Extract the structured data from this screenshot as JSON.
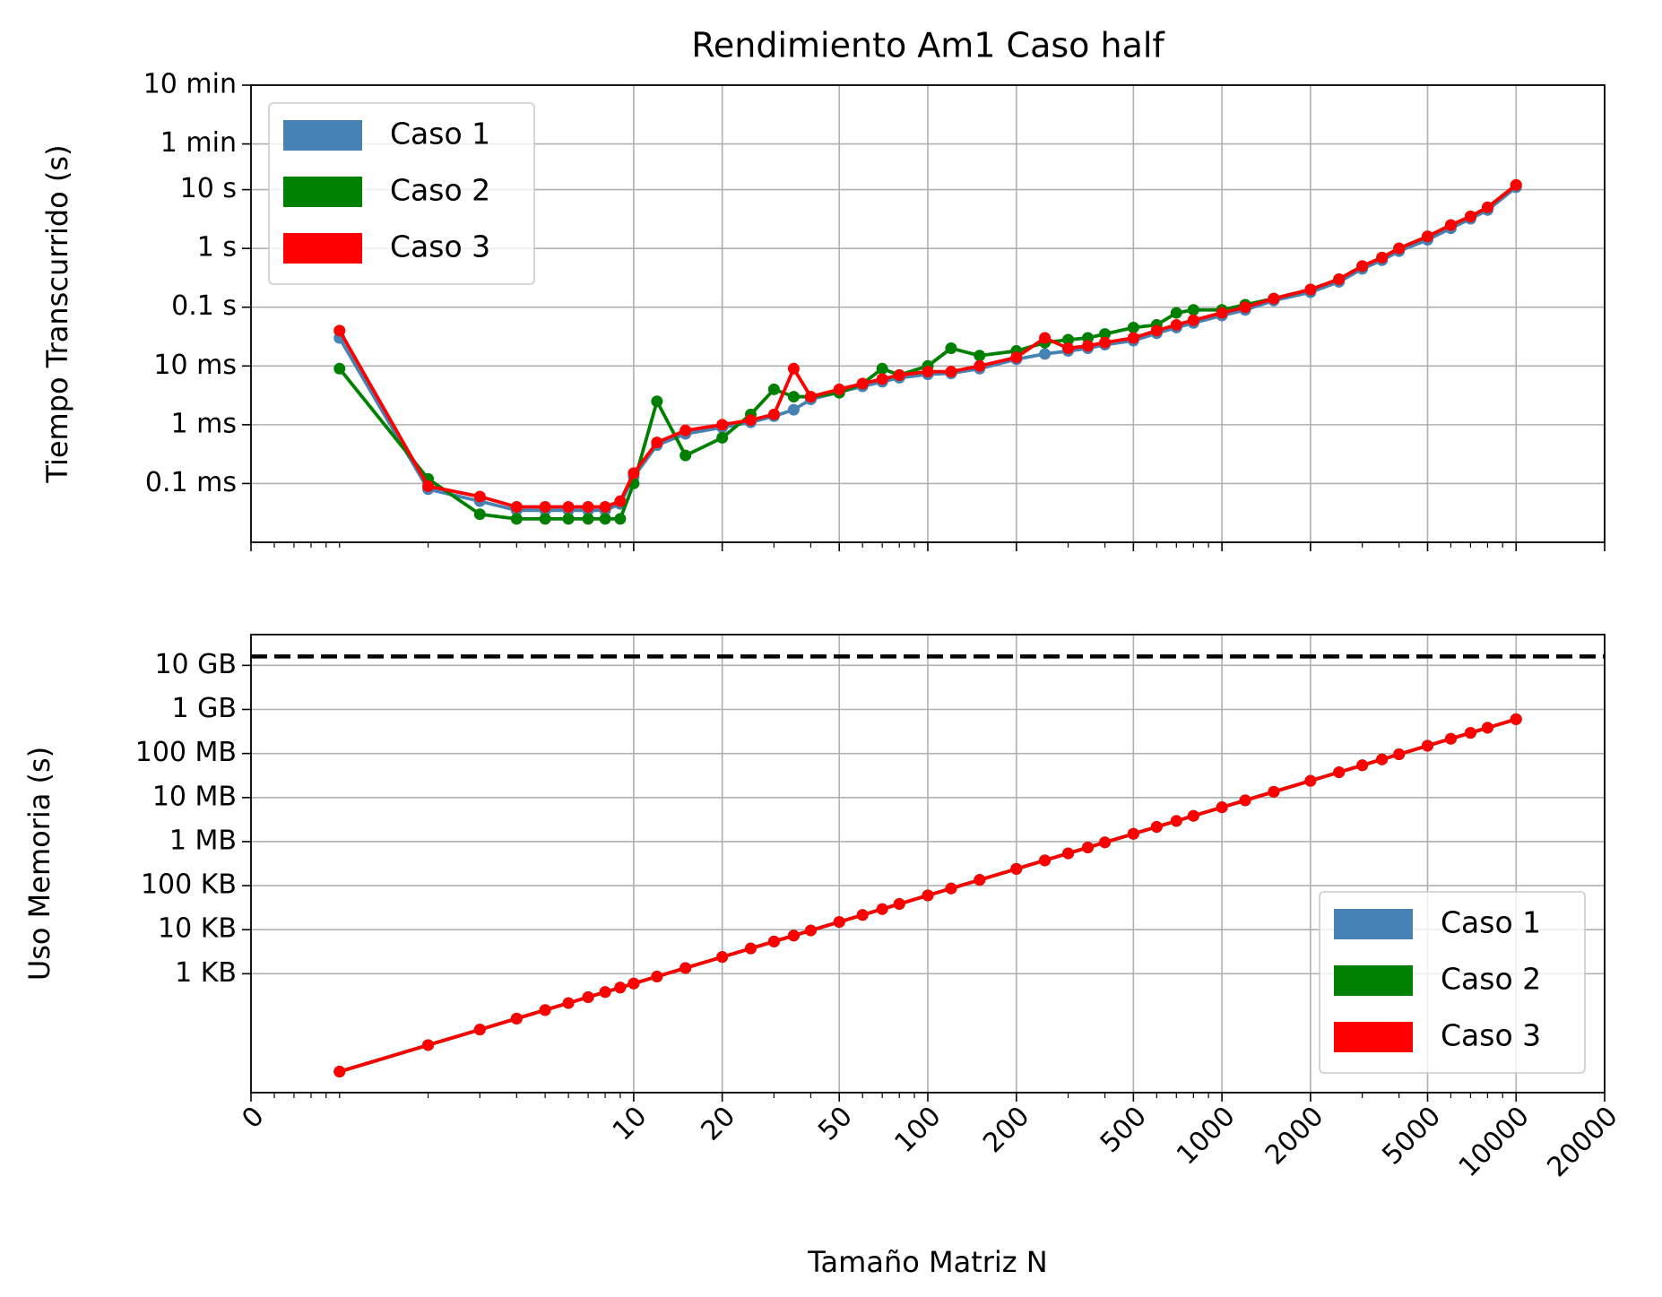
{
  "chart_data": [
    {
      "type": "line",
      "title": "Rendimiento Am1 Caso half",
      "ylabel": "Tiempo Transcurrido (s)",
      "xscale": "log",
      "yscale": "log",
      "sharex": true,
      "grid": true,
      "legend": "upper left",
      "ylim": [
        1e-05,
        600
      ],
      "yticks": [
        {
          "value": 0.0001,
          "label": "0.1 ms"
        },
        {
          "value": 0.001,
          "label": "1 ms"
        },
        {
          "value": 0.01,
          "label": "10 ms"
        },
        {
          "value": 0.1,
          "label": "0.1 s"
        },
        {
          "value": 1,
          "label": "1 s"
        },
        {
          "value": 10,
          "label": "10 s"
        },
        {
          "value": 60,
          "label": "1 min"
        },
        {
          "value": 600,
          "label": "10 min"
        }
      ],
      "x": [
        1,
        2,
        3,
        4,
        5,
        6,
        7,
        8,
        9,
        10,
        12,
        15,
        20,
        25,
        30,
        35,
        40,
        50,
        60,
        70,
        80,
        100,
        120,
        150,
        200,
        250,
        300,
        350,
        400,
        500,
        600,
        700,
        800,
        1000,
        1200,
        1500,
        2000,
        2500,
        3000,
        3500,
        4000,
        5000,
        6000,
        7000,
        8000,
        10000
      ],
      "series": [
        {
          "name": "Caso 1",
          "color": "#4682b4",
          "values": [
            0.03,
            8e-05,
            5e-05,
            3.5e-05,
            3.5e-05,
            3.5e-05,
            3.5e-05,
            3.5e-05,
            4.5e-05,
            0.00013,
            0.00045,
            0.0007,
            0.0009,
            0.0011,
            0.0014,
            0.0018,
            0.0027,
            0.0036,
            0.0045,
            0.0054,
            0.0063,
            0.0072,
            0.0075,
            0.009,
            0.013,
            0.016,
            0.018,
            0.02,
            0.023,
            0.027,
            0.036,
            0.045,
            0.054,
            0.072,
            0.09,
            0.13,
            0.18,
            0.27,
            0.45,
            0.63,
            0.9,
            1.4,
            2.2,
            3.2,
            4.5,
            11
          ]
        },
        {
          "name": "Caso 2",
          "color": "#008000",
          "values": [
            0.009,
            0.00012,
            3e-05,
            2.5e-05,
            2.5e-05,
            2.5e-05,
            2.5e-05,
            2.5e-05,
            2.5e-05,
            0.0001,
            0.0025,
            0.0003,
            0.0006,
            0.0015,
            0.004,
            0.003,
            0.003,
            0.0035,
            0.005,
            0.009,
            0.007,
            0.01,
            0.02,
            0.015,
            0.018,
            0.025,
            0.028,
            0.03,
            0.035,
            0.045,
            0.05,
            0.08,
            0.09,
            0.09,
            0.11,
            0.14,
            0.2,
            0.3,
            0.5,
            0.7,
            1,
            1.6,
            2.5,
            3.5,
            5,
            12
          ]
        },
        {
          "name": "Caso 3",
          "color": "#ff0000",
          "values": [
            0.04,
            9e-05,
            6e-05,
            4e-05,
            4e-05,
            4e-05,
            4e-05,
            4e-05,
            5e-05,
            0.00015,
            0.0005,
            0.0008,
            0.001,
            0.0012,
            0.0015,
            0.009,
            0.003,
            0.004,
            0.005,
            0.006,
            0.007,
            0.008,
            0.008,
            0.01,
            0.014,
            0.03,
            0.02,
            0.022,
            0.025,
            0.03,
            0.04,
            0.05,
            0.06,
            0.08,
            0.1,
            0.14,
            0.2,
            0.3,
            0.5,
            0.7,
            1,
            1.6,
            2.5,
            3.5,
            5,
            12
          ]
        }
      ]
    },
    {
      "type": "line",
      "ylabel": "Uso Memoria (s)",
      "xlabel": "Tamaño Matriz N",
      "xscale": "log",
      "yscale": "log",
      "grid": true,
      "legend": "lower right",
      "xlim": [
        0.5,
        20000
      ],
      "xticks": [
        {
          "value": 0.5,
          "label": "0"
        },
        10,
        20,
        50,
        100,
        200,
        500,
        1000,
        2000,
        5000,
        10000,
        20000
      ],
      "ylim": [
        2,
        50000000000
      ],
      "yticks": [
        {
          "value": 1000,
          "label": "1 KB"
        },
        {
          "value": 10000,
          "label": "10 KB"
        },
        {
          "value": 100000,
          "label": "100 KB"
        },
        {
          "value": 1000000,
          "label": "1 MB"
        },
        {
          "value": 10000000,
          "label": "10 MB"
        },
        {
          "value": 100000000,
          "label": "100 MB"
        },
        {
          "value": 1000000000,
          "label": "1 GB"
        },
        {
          "value": 10000000000,
          "label": "10 GB"
        }
      ],
      "reference_line": {
        "value": 16000000000,
        "color": "#000000",
        "dashed": true
      },
      "x": [
        1,
        2,
        3,
        4,
        5,
        6,
        7,
        8,
        9,
        10,
        12,
        15,
        20,
        25,
        30,
        35,
        40,
        50,
        60,
        70,
        80,
        100,
        120,
        150,
        200,
        250,
        300,
        350,
        400,
        500,
        600,
        700,
        800,
        1000,
        1200,
        1500,
        2000,
        2500,
        3000,
        3500,
        4000,
        5000,
        6000,
        7000,
        8000,
        10000
      ],
      "series": [
        {
          "name": "Caso 1",
          "color": "#4682b4",
          "values": [
            6,
            24,
            54,
            96,
            150,
            216,
            294,
            384,
            486,
            600,
            864,
            1350,
            2400,
            3750,
            5400,
            7350,
            9600,
            15000,
            21600,
            29400,
            38400,
            60000,
            86400,
            135000,
            240000,
            375000,
            540000,
            735000,
            960000,
            1500000,
            2160000,
            2940000,
            3840000,
            6000000,
            8640000,
            13500000,
            24000000,
            37500000,
            54000000,
            73500000,
            96000000,
            150000000,
            216000000,
            294000000,
            384000000,
            600000000
          ]
        },
        {
          "name": "Caso 2",
          "color": "#008000",
          "values": [
            6,
            24,
            54,
            96,
            150,
            216,
            294,
            384,
            486,
            600,
            864,
            1350,
            2400,
            3750,
            5400,
            7350,
            9600,
            15000,
            21600,
            29400,
            38400,
            60000,
            86400,
            135000,
            240000,
            375000,
            540000,
            735000,
            960000,
            1500000,
            2160000,
            2940000,
            3840000,
            6000000,
            8640000,
            13500000,
            24000000,
            37500000,
            54000000,
            73500000,
            96000000,
            150000000,
            216000000,
            294000000,
            384000000,
            600000000
          ]
        },
        {
          "name": "Caso 3",
          "color": "#ff0000",
          "values": [
            6,
            24,
            54,
            96,
            150,
            216,
            294,
            384,
            486,
            600,
            864,
            1350,
            2400,
            3750,
            5400,
            7350,
            9600,
            15000,
            21600,
            29400,
            38400,
            60000,
            86400,
            135000,
            240000,
            375000,
            540000,
            735000,
            960000,
            1500000,
            2160000,
            2940000,
            3840000,
            6000000,
            8640000,
            13500000,
            24000000,
            37500000,
            54000000,
            73500000,
            96000000,
            150000000,
            216000000,
            294000000,
            384000000,
            600000000
          ]
        }
      ]
    }
  ]
}
